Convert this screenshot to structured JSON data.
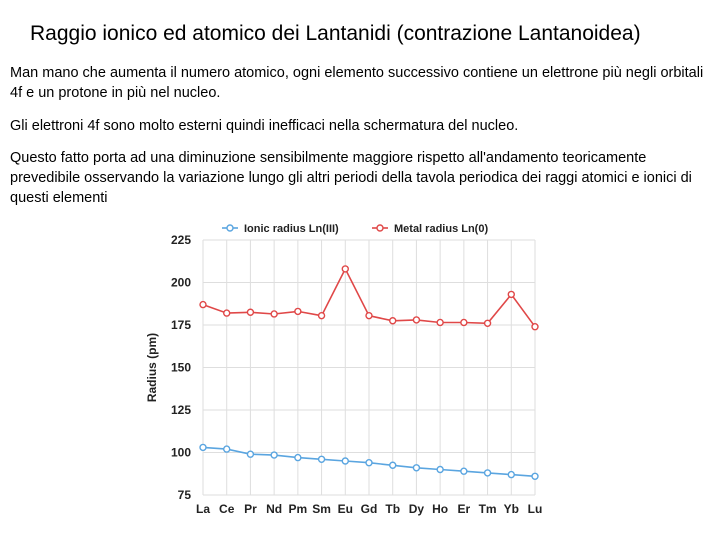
{
  "slide": {
    "title": "Raggio ionico ed atomico dei Lantanidi (contrazione Lantanoidea)",
    "paragraphs": [
      "Man mano che aumenta il numero atomico, ogni elemento successivo contiene un elettrone più negli orbitali 4f e un protone in più nel nucleo.",
      "Gli elettroni 4f sono molto esterni quindi inefficaci nella schermatura del nucleo.",
      "Questo fatto porta ad una diminuzione sensibilmente maggiore rispetto all'andamento teoricamente prevedibile osservando la variazione lungo gli altri periodi della tavola periodica dei raggi atomici e ionici di questi elementi"
    ]
  },
  "chart_data": {
    "type": "line",
    "categories": [
      "La",
      "Ce",
      "Pr",
      "Nd",
      "Pm",
      "Sm",
      "Eu",
      "Gd",
      "Tb",
      "Dy",
      "Ho",
      "Er",
      "Tm",
      "Yb",
      "Lu"
    ],
    "series": [
      {
        "name": "Ionic radius Ln(III)",
        "color": "#5aa5e0",
        "values": [
          103,
          102,
          99,
          98.5,
          97,
          96,
          95,
          94,
          92.5,
          91,
          90,
          89,
          88,
          87,
          86
        ]
      },
      {
        "name": "Metal radius Ln(0)",
        "color": "#e04848",
        "values": [
          187,
          182,
          182.5,
          181.5,
          183,
          180.5,
          208,
          180.5,
          177.5,
          178,
          176.5,
          176.5,
          176,
          193,
          174
        ]
      }
    ],
    "ylabel": "Radius (pm)",
    "xlabel": "",
    "ylim": [
      75,
      225
    ],
    "yticks": [
      75,
      100,
      125,
      150,
      175,
      200,
      225
    ],
    "grid": true,
    "legend": "top"
  }
}
